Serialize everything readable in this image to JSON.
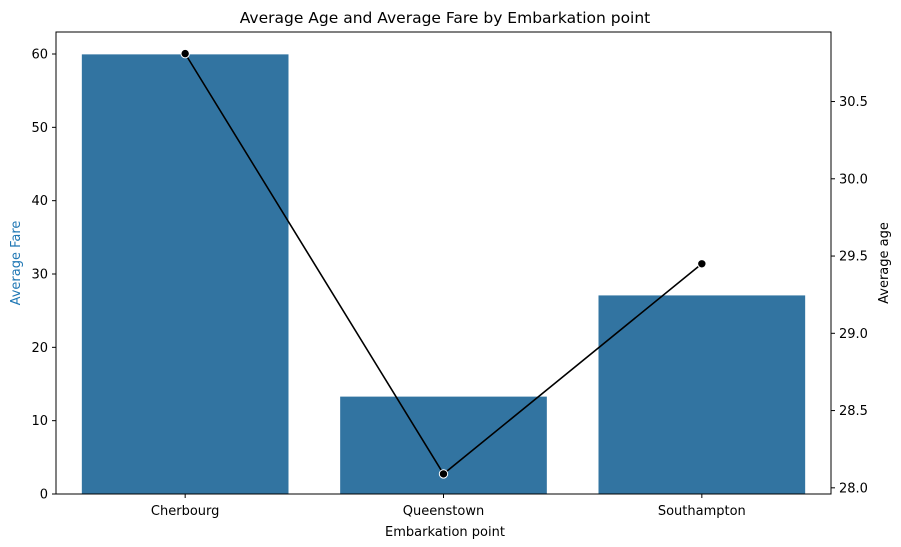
{
  "chart_data": {
    "type": "bar",
    "title": "Average Age and Average Fare by Embarkation point",
    "xlabel": "Embarkation point",
    "ylabel": "Average Fare",
    "y2label": "Average age",
    "categories": [
      "Cherbourg",
      "Queenstown",
      "Southampton"
    ],
    "series": [
      {
        "type": "bar",
        "axis": "left",
        "values": [
          59.95,
          13.28,
          27.08
        ],
        "color": "#3274a1"
      },
      {
        "type": "line",
        "axis": "right",
        "values": [
          30.81,
          28.09,
          29.45
        ],
        "color": "#000000"
      }
    ],
    "ylim": [
      0,
      63
    ],
    "y2lim": [
      27.96,
      30.95
    ],
    "yticks": [
      0,
      10,
      20,
      30,
      40,
      50,
      60
    ],
    "y2ticks": [
      "28.0",
      "28.5",
      "29.0",
      "29.5",
      "30.0",
      "30.5"
    ],
    "ylabel_color": "#1f77b4",
    "grid": false
  }
}
